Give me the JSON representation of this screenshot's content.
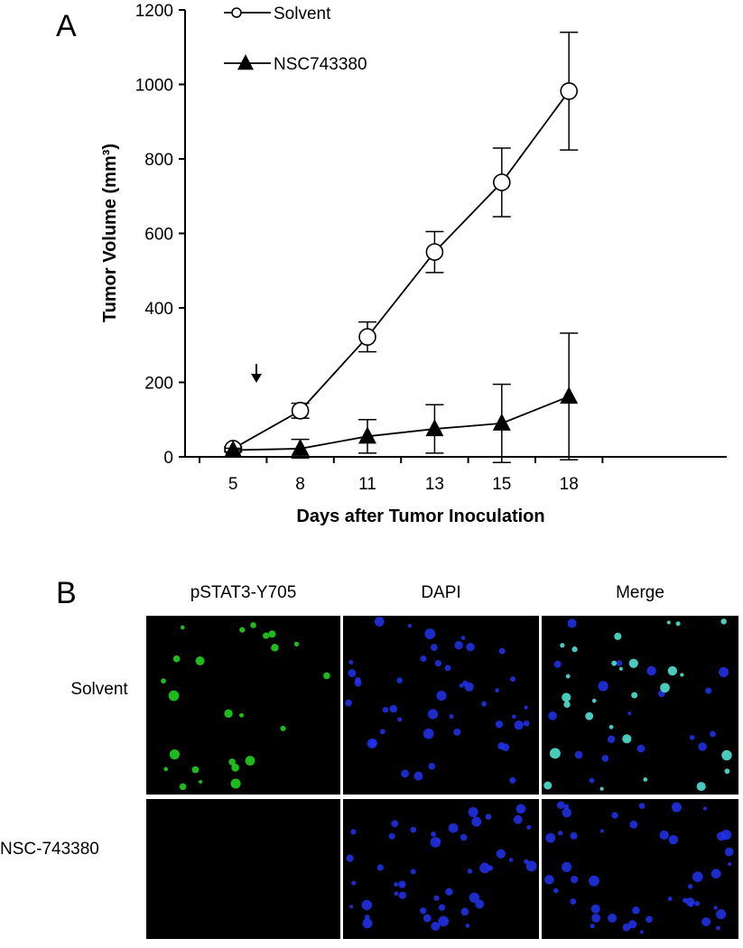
{
  "panel_a_label": "A",
  "chart_data": {
    "type": "line",
    "xlabel": "Days after Tumor Inoculation",
    "ylabel": "Tumor Volume (mm³)",
    "categories": [
      "5",
      "8",
      "11",
      "13",
      "15",
      "18"
    ],
    "series": [
      {
        "name": "Solvent",
        "color": "#000000",
        "marker": "circle",
        "values": [
          22,
          124,
          322,
          550,
          737,
          982
        ],
        "errors": [
          5,
          20,
          40,
          55,
          92,
          158
        ]
      },
      {
        "name": "NSC743380",
        "color": "#000000",
        "marker": "triangle",
        "values": [
          18,
          22,
          55,
          75,
          90,
          162
        ],
        "errors": [
          5,
          25,
          45,
          65,
          105,
          170
        ]
      }
    ],
    "ylim": [
      0,
      1200
    ],
    "yticks": [
      0,
      200,
      400,
      600,
      800,
      1000,
      1200
    ],
    "grid": false,
    "legend": "top-left"
  },
  "panel_b": {
    "label": "B",
    "columns": [
      "pSTAT3-Y705",
      "DAPI",
      "Merge"
    ],
    "rows": [
      "Solvent",
      "NSC-743380"
    ]
  }
}
